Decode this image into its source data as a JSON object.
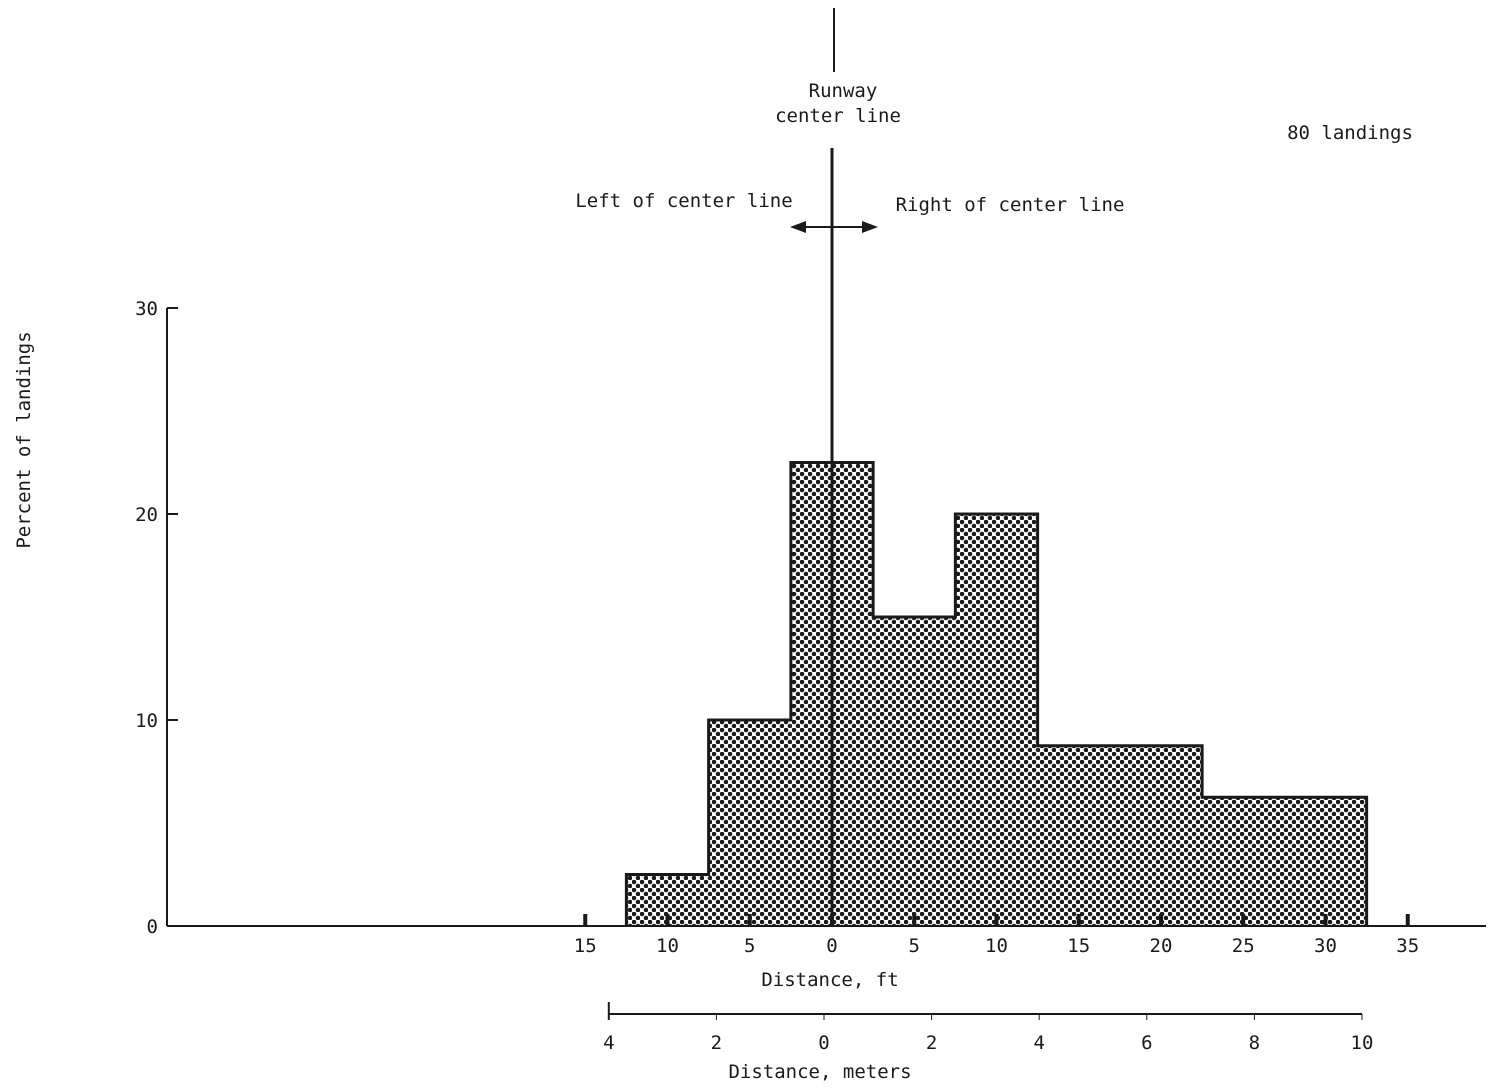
{
  "chart_data": {
    "type": "bar",
    "ylabel": "Percent of landings",
    "xlabel": "Distance, ft",
    "xlabel_secondary": "Distance, meters",
    "annotation_count": "80 landings",
    "centerline_label_line1": "Runway",
    "centerline_label_line2": "center line",
    "left_label": "Left of center line",
    "right_label": "Right of center line",
    "ylim": [
      0,
      30
    ],
    "yticks": [
      "0",
      "10",
      "20",
      "30"
    ],
    "xticks_ft": [
      {
        "value": -15,
        "label": "15"
      },
      {
        "value": -10,
        "label": "10"
      },
      {
        "value": -5,
        "label": "5"
      },
      {
        "value": 0,
        "label": "0"
      },
      {
        "value": 5,
        "label": "5"
      },
      {
        "value": 10,
        "label": "10"
      },
      {
        "value": 15,
        "label": "15"
      },
      {
        "value": 20,
        "label": "20"
      },
      {
        "value": 25,
        "label": "25"
      },
      {
        "value": 30,
        "label": "30"
      },
      {
        "value": 35,
        "label": "35"
      }
    ],
    "xticks_m": [
      {
        "value": -4,
        "label": "4"
      },
      {
        "value": -2,
        "label": "2"
      },
      {
        "value": 0,
        "label": "0"
      },
      {
        "value": 2,
        "label": "2"
      },
      {
        "value": 4,
        "label": "4"
      },
      {
        "value": 6,
        "label": "6"
      },
      {
        "value": 8,
        "label": "8"
      },
      {
        "value": 10,
        "label": "10"
      }
    ],
    "bins": [
      {
        "from": -12.5,
        "to": -7.5,
        "value": 2.5
      },
      {
        "from": -7.5,
        "to": -2.5,
        "value": 10
      },
      {
        "from": -2.5,
        "to": 2.5,
        "value": 22.5
      },
      {
        "from": 2.5,
        "to": 7.5,
        "value": 15
      },
      {
        "from": 7.5,
        "to": 12.5,
        "value": 20
      },
      {
        "from": 12.5,
        "to": 22.5,
        "value": 8.75
      },
      {
        "from": 22.5,
        "to": 32.5,
        "value": 6.25
      }
    ],
    "fill_pattern": "dotted",
    "grid": false
  }
}
